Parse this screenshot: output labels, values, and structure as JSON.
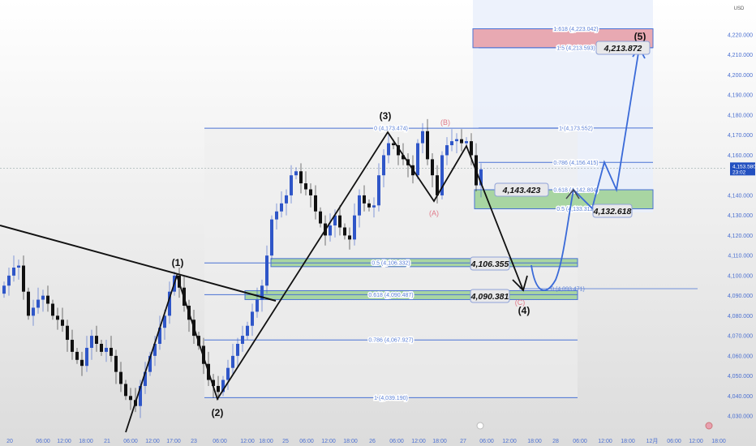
{
  "chart_data": {
    "type": "candlestick",
    "currency_label": "USD",
    "ylim": [
      4027,
      4232
    ],
    "y_ticks": [
      "4,220.000",
      "4,210.000",
      "4,200.000",
      "4,190.000",
      "4,180.000",
      "4,170.000",
      "4,160.000",
      "4,140.000",
      "4,130.000",
      "4,120.000",
      "4,110.000",
      "4,100.000",
      "4,090.000",
      "4,080.000",
      "4,070.000",
      "4,060.000",
      "4,050.000",
      "4,040.000",
      "4,030.000"
    ],
    "y_tick_values": [
      4220,
      4210,
      4200,
      4190,
      4180,
      4170,
      4160,
      4140,
      4130,
      4120,
      4110,
      4100,
      4090,
      4080,
      4070,
      4060,
      4050,
      4040,
      4030
    ],
    "x_ticks": [
      "20",
      "06:00",
      "12:00",
      "18:00",
      "21",
      "06:00",
      "12:00",
      "17:00",
      "23",
      "06:00",
      "12:00",
      "18:00",
      "25",
      "06:00",
      "12:00",
      "18:00",
      "26",
      "06:00",
      "12:00",
      "18:00",
      "27",
      "06:00",
      "12:00",
      "18:00",
      "28",
      "06:00",
      "12:00",
      "18:00",
      "12月",
      "06:00",
      "12:00",
      "18:00"
    ],
    "closes": [
      4095,
      4100,
      4104,
      4105,
      4092,
      4080,
      4084,
      4088,
      4090,
      4086,
      4080,
      4078,
      4075,
      4068,
      4062,
      4058,
      4055,
      4064,
      4070,
      4066,
      4062,
      4064,
      4060,
      4052,
      4046,
      4040,
      4038,
      4035,
      4045,
      4052,
      4060,
      4066,
      4074,
      4080,
      4092,
      4100,
      4094,
      4085,
      4078,
      4070,
      4065,
      4056,
      4048,
      4045,
      4042,
      4048,
      4054,
      4060,
      4066,
      4070,
      4075,
      4082,
      4088,
      4095,
      4110,
      4128,
      4132,
      4136,
      4140,
      4150,
      4152,
      4146,
      4143,
      4140,
      4132,
      4126,
      4120,
      4125,
      4130,
      4124,
      4120,
      4118,
      4130,
      4140,
      4136,
      4134,
      4135,
      4150,
      4160,
      4166,
      4165,
      4160,
      4158,
      4155,
      4150,
      4166,
      4172,
      4158,
      4150,
      4140,
      4160,
      4165,
      4167,
      4168,
      4166,
      4167,
      4160,
      4145,
      4153
    ],
    "current_price": {
      "value": "4,153.580",
      "countdown": "23:02",
      "price": 4153.58
    },
    "colors": {
      "up": "#2f56c8",
      "down": "#111111",
      "fib": "#4a72d4",
      "green_zone": "#a8d5a2",
      "red_zone": "#e8a9b2",
      "projection": "#3a6ad8"
    },
    "fib_left": [
      {
        "label": "0 (4,173.474)",
        "price": 4173.474
      },
      {
        "label": "0.5 (4,106.332)",
        "price": 4106.332
      },
      {
        "label": "0.618 (4,090.487)",
        "price": 4090.487
      },
      {
        "label": "0.786 (4,067.927)",
        "price": 4067.927
      },
      {
        "label": "1 (4,039.190)",
        "price": 4039.19
      }
    ],
    "fib_right": [
      {
        "label": "1.618 (4,223.042)",
        "price": 4223.042
      },
      {
        "label": "1.5 (4,213.593)",
        "price": 4213.593
      },
      {
        "label": "1 (4,173.552)",
        "price": 4173.552
      },
      {
        "label": "0.786 (4,156.415)",
        "price": 4156.415
      },
      {
        "label": "0.618 (4,142.804)",
        "price": 4142.804
      },
      {
        "label": "0.5 (4,133.312)",
        "price": 4133.312
      }
    ],
    "extra_fib_label": "0 (4,093.471)",
    "price_tags": [
      "4,213.872",
      "4,143.423",
      "4,132.618",
      "4,106.355",
      "4,090.381"
    ],
    "waves": [
      "(1)",
      "(2)",
      "(3)",
      "(4)",
      "(5)"
    ],
    "corrective_waves": [
      "(A)",
      "(B)",
      "(C)"
    ]
  }
}
